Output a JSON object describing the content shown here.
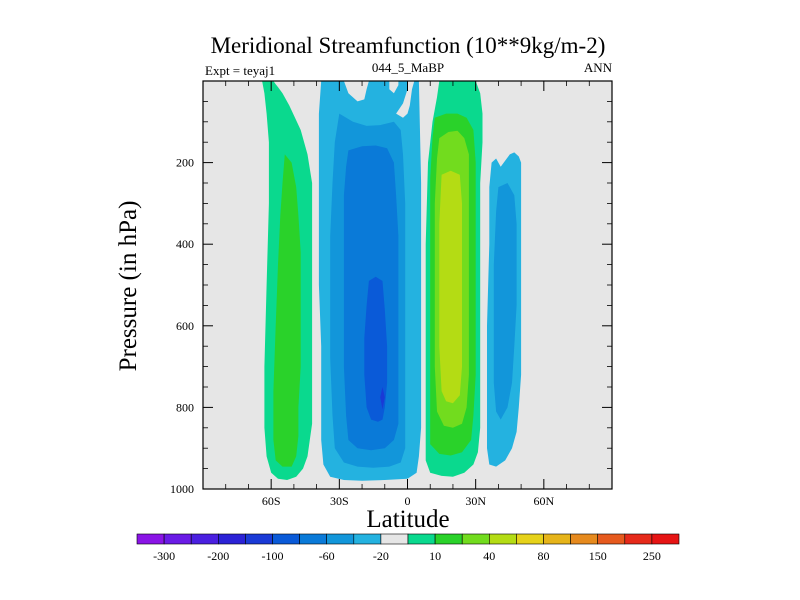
{
  "chart_data": {
    "type": "filled-contour",
    "title": "Meridional Streamfunction (10**9kg/m-2)",
    "left_label": "Expt = teyaj1",
    "center_label": "044_5_MaBP",
    "right_label": "ANN",
    "xlabel": "Latitude",
    "ylabel": "Pressure (in hPa)",
    "xlim": [
      -90,
      90
    ],
    "ylim": [
      1000,
      0
    ],
    "xticks": [
      -60,
      -30,
      0,
      30,
      60
    ],
    "xtick_labels": [
      "60S",
      "30S",
      "0",
      "30N",
      "60N"
    ],
    "yticks": [
      200,
      400,
      600,
      800,
      1000
    ],
    "ytick_labels": [
      "200",
      "400",
      "600",
      "800",
      "1000"
    ],
    "background_color": "#e6e6e6",
    "colorbar": {
      "colors": [
        "#8a14e6",
        "#6a1be6",
        "#4a1fe0",
        "#2b22d6",
        "#1a3ad6",
        "#0a5ad8",
        "#0a7ad8",
        "#1296da",
        "#24b2e0",
        "#e6e6e6",
        "#0ad98e",
        "#2ad22a",
        "#72dc1e",
        "#b4dc14",
        "#e6d21a",
        "#e6b41a",
        "#e68a1e",
        "#e65a1e",
        "#e62a1a",
        "#e61414"
      ],
      "labels": [
        "-300",
        "-200",
        "-100",
        "-60",
        "-20",
        "10",
        "40",
        "80",
        "150",
        "250"
      ]
    },
    "regions": [
      {
        "level": "10",
        "color": "#0ad98e",
        "points": [
          [
            -64,
            0
          ],
          [
            -59,
            0
          ],
          [
            -58,
            8
          ],
          [
            -57,
            15
          ],
          [
            -55,
            30
          ],
          [
            -52,
            60
          ],
          [
            -47,
            120
          ],
          [
            -44,
            180
          ],
          [
            -42,
            250
          ],
          [
            -42,
            350
          ],
          [
            -42,
            500
          ],
          [
            -42,
            650
          ],
          [
            -42,
            780
          ],
          [
            -42,
            840
          ],
          [
            -43,
            880
          ],
          [
            -44,
            920
          ],
          [
            -46,
            950
          ],
          [
            -49,
            970
          ],
          [
            -53,
            978
          ],
          [
            -57,
            975
          ],
          [
            -60,
            960
          ],
          [
            -62,
            920
          ],
          [
            -63,
            850
          ],
          [
            -63,
            700
          ],
          [
            -62,
            500
          ],
          [
            -61,
            300
          ],
          [
            -61,
            150
          ],
          [
            -62,
            80
          ],
          [
            -63,
            30
          ]
        ]
      },
      {
        "level": "40",
        "color": "#2ad22a",
        "points": [
          [
            -54,
            180
          ],
          [
            -51,
            200
          ],
          [
            -49,
            260
          ],
          [
            -48,
            330
          ],
          [
            -47,
            420
          ],
          [
            -47,
            500
          ],
          [
            -47,
            600
          ],
          [
            -47,
            700
          ],
          [
            -48,
            800
          ],
          [
            -48,
            870
          ],
          [
            -49,
            920
          ],
          [
            -51,
            945
          ],
          [
            -55,
            945
          ],
          [
            -58,
            930
          ],
          [
            -59,
            880
          ],
          [
            -59,
            760
          ],
          [
            -58,
            600
          ],
          [
            -57,
            450
          ],
          [
            -56,
            330
          ],
          [
            -55,
            250
          ]
        ]
      },
      {
        "level": "-20",
        "color": "#24b2e0",
        "points": [
          [
            -38,
            0
          ],
          [
            -28,
            0
          ],
          [
            -26,
            30
          ],
          [
            -22,
            50
          ],
          [
            -19,
            45
          ],
          [
            -18,
            20
          ],
          [
            -17,
            0
          ],
          [
            -8,
            0
          ],
          [
            -8,
            20
          ],
          [
            -6,
            30
          ],
          [
            -4,
            10
          ],
          [
            -4,
            0
          ],
          [
            0,
            0
          ],
          [
            0,
            20
          ],
          [
            -2,
            55
          ],
          [
            -5,
            80
          ],
          [
            -2,
            90
          ],
          [
            0,
            80
          ],
          [
            1,
            60
          ],
          [
            2,
            20
          ],
          [
            3,
            0
          ],
          [
            5,
            0
          ],
          [
            6,
            250
          ],
          [
            6,
            500
          ],
          [
            6,
            700
          ],
          [
            6,
            850
          ],
          [
            5,
            920
          ],
          [
            4,
            960
          ],
          [
            0,
            975
          ],
          [
            -10,
            978
          ],
          [
            -20,
            980
          ],
          [
            -28,
            978
          ],
          [
            -34,
            970
          ],
          [
            -37,
            940
          ],
          [
            -38,
            880
          ],
          [
            -38,
            780
          ],
          [
            -38,
            650
          ],
          [
            -39,
            500
          ],
          [
            -39,
            350
          ],
          [
            -39,
            200
          ],
          [
            -39,
            80
          ]
        ]
      },
      {
        "level": "-60",
        "color": "#1296da",
        "points": [
          [
            -30,
            80
          ],
          [
            -24,
            100
          ],
          [
            -18,
            110
          ],
          [
            -12,
            108
          ],
          [
            -6,
            100
          ],
          [
            -3,
            120
          ],
          [
            -2,
            180
          ],
          [
            -1,
            300
          ],
          [
            -1,
            420
          ],
          [
            -1,
            560
          ],
          [
            -1,
            700
          ],
          [
            -1,
            820
          ],
          [
            -1,
            900
          ],
          [
            -3,
            935
          ],
          [
            -8,
            945
          ],
          [
            -15,
            948
          ],
          [
            -22,
            945
          ],
          [
            -28,
            935
          ],
          [
            -32,
            900
          ],
          [
            -33,
            820
          ],
          [
            -34,
            680
          ],
          [
            -34,
            520
          ],
          [
            -34,
            380
          ],
          [
            -33,
            250
          ],
          [
            -32,
            150
          ]
        ]
      },
      {
        "level": "-100",
        "color": "#0a7ad8",
        "points": [
          [
            -26,
            170
          ],
          [
            -20,
            160
          ],
          [
            -14,
            158
          ],
          [
            -9,
            165
          ],
          [
            -6,
            200
          ],
          [
            -5,
            280
          ],
          [
            -4,
            380
          ],
          [
            -4,
            480
          ],
          [
            -4,
            580
          ],
          [
            -4,
            680
          ],
          [
            -4,
            780
          ],
          [
            -4,
            840
          ],
          [
            -6,
            880
          ],
          [
            -10,
            900
          ],
          [
            -16,
            905
          ],
          [
            -22,
            900
          ],
          [
            -26,
            880
          ],
          [
            -27,
            820
          ],
          [
            -28,
            700
          ],
          [
            -28,
            550
          ],
          [
            -28,
            400
          ],
          [
            -28,
            280
          ],
          [
            -27,
            210
          ]
        ]
      },
      {
        "level": "-200",
        "color": "#0a5ad8",
        "points": [
          [
            -17,
            490
          ],
          [
            -14,
            480
          ],
          [
            -11,
            490
          ],
          [
            -10,
            560
          ],
          [
            -9,
            650
          ],
          [
            -9,
            740
          ],
          [
            -10,
            800
          ],
          [
            -11,
            830
          ],
          [
            -13,
            835
          ],
          [
            -16,
            830
          ],
          [
            -18,
            800
          ],
          [
            -19,
            720
          ],
          [
            -19,
            630
          ],
          [
            -18,
            550
          ]
        ]
      },
      {
        "level": "-300",
        "color": "#1a3ad6",
        "points": [
          [
            -11,
            750
          ],
          [
            -10,
            775
          ],
          [
            -11,
            805
          ],
          [
            -12,
            775
          ]
        ]
      },
      {
        "level": "10",
        "color": "#0ad98e",
        "points": [
          [
            14,
            0
          ],
          [
            30,
            0
          ],
          [
            32,
            30
          ],
          [
            33,
            80
          ],
          [
            33,
            150
          ],
          [
            32,
            250
          ],
          [
            32,
            400
          ],
          [
            32,
            600
          ],
          [
            32,
            750
          ],
          [
            32,
            850
          ],
          [
            31,
            910
          ],
          [
            29,
            940
          ],
          [
            25,
            960
          ],
          [
            20,
            970
          ],
          [
            15,
            968
          ],
          [
            10,
            960
          ],
          [
            8,
            930
          ],
          [
            8,
            880
          ],
          [
            8,
            780
          ],
          [
            8,
            600
          ],
          [
            8,
            400
          ],
          [
            9,
            200
          ],
          [
            11,
            100
          ],
          [
            13,
            40
          ]
        ]
      },
      {
        "level": "40",
        "color": "#2ad22a",
        "points": [
          [
            12,
            90
          ],
          [
            17,
            80
          ],
          [
            22,
            80
          ],
          [
            26,
            90
          ],
          [
            29,
            120
          ],
          [
            30,
            200
          ],
          [
            30,
            300
          ],
          [
            30,
            450
          ],
          [
            30,
            600
          ],
          [
            30,
            720
          ],
          [
            29,
            820
          ],
          [
            28,
            880
          ],
          [
            24,
            910
          ],
          [
            19,
            918
          ],
          [
            14,
            914
          ],
          [
            10,
            890
          ],
          [
            10,
            800
          ],
          [
            10,
            600
          ],
          [
            10,
            400
          ],
          [
            10,
            240
          ],
          [
            11,
            140
          ]
        ]
      },
      {
        "level": "80",
        "color": "#72dc1e",
        "points": [
          [
            14,
            140
          ],
          [
            18,
            125
          ],
          [
            22,
            122
          ],
          [
            25,
            140
          ],
          [
            27,
            180
          ],
          [
            27,
            300
          ],
          [
            27,
            450
          ],
          [
            27,
            600
          ],
          [
            27,
            720
          ],
          [
            26,
            800
          ],
          [
            24,
            840
          ],
          [
            20,
            850
          ],
          [
            16,
            845
          ],
          [
            13,
            810
          ],
          [
            12,
            700
          ],
          [
            12,
            500
          ],
          [
            12,
            300
          ],
          [
            13,
            190
          ]
        ]
      },
      {
        "level": "150",
        "color": "#b4dc14",
        "points": [
          [
            15,
            230
          ],
          [
            19,
            220
          ],
          [
            23,
            230
          ],
          [
            24,
            300
          ],
          [
            24,
            420
          ],
          [
            24,
            550
          ],
          [
            24,
            700
          ],
          [
            23,
            770
          ],
          [
            20,
            790
          ],
          [
            17,
            785
          ],
          [
            15,
            760
          ],
          [
            14,
            650
          ],
          [
            14,
            500
          ],
          [
            14,
            350
          ]
        ]
      },
      {
        "level": "-20",
        "color": "#24b2e0",
        "points": [
          [
            37,
            200
          ],
          [
            39,
            190
          ],
          [
            41,
            210
          ],
          [
            43,
            195
          ],
          [
            45,
            180
          ],
          [
            47,
            175
          ],
          [
            49,
            185
          ],
          [
            50,
            200
          ],
          [
            50,
            300
          ],
          [
            50,
            450
          ],
          [
            50,
            600
          ],
          [
            50,
            720
          ],
          [
            49,
            800
          ],
          [
            48,
            860
          ],
          [
            46,
            900
          ],
          [
            43,
            930
          ],
          [
            39,
            945
          ],
          [
            36,
            940
          ],
          [
            35,
            900
          ],
          [
            35,
            800
          ],
          [
            35,
            600
          ],
          [
            36,
            400
          ],
          [
            36,
            260
          ]
        ]
      },
      {
        "level": "-60",
        "color": "#1296da",
        "points": [
          [
            40,
            260
          ],
          [
            44,
            250
          ],
          [
            47,
            280
          ],
          [
            48,
            350
          ],
          [
            48,
            450
          ],
          [
            48,
            550
          ],
          [
            47,
            650
          ],
          [
            46,
            740
          ],
          [
            44,
            800
          ],
          [
            41,
            830
          ],
          [
            39,
            810
          ],
          [
            38,
            740
          ],
          [
            38,
            600
          ],
          [
            38,
            450
          ],
          [
            39,
            320
          ]
        ]
      }
    ]
  }
}
